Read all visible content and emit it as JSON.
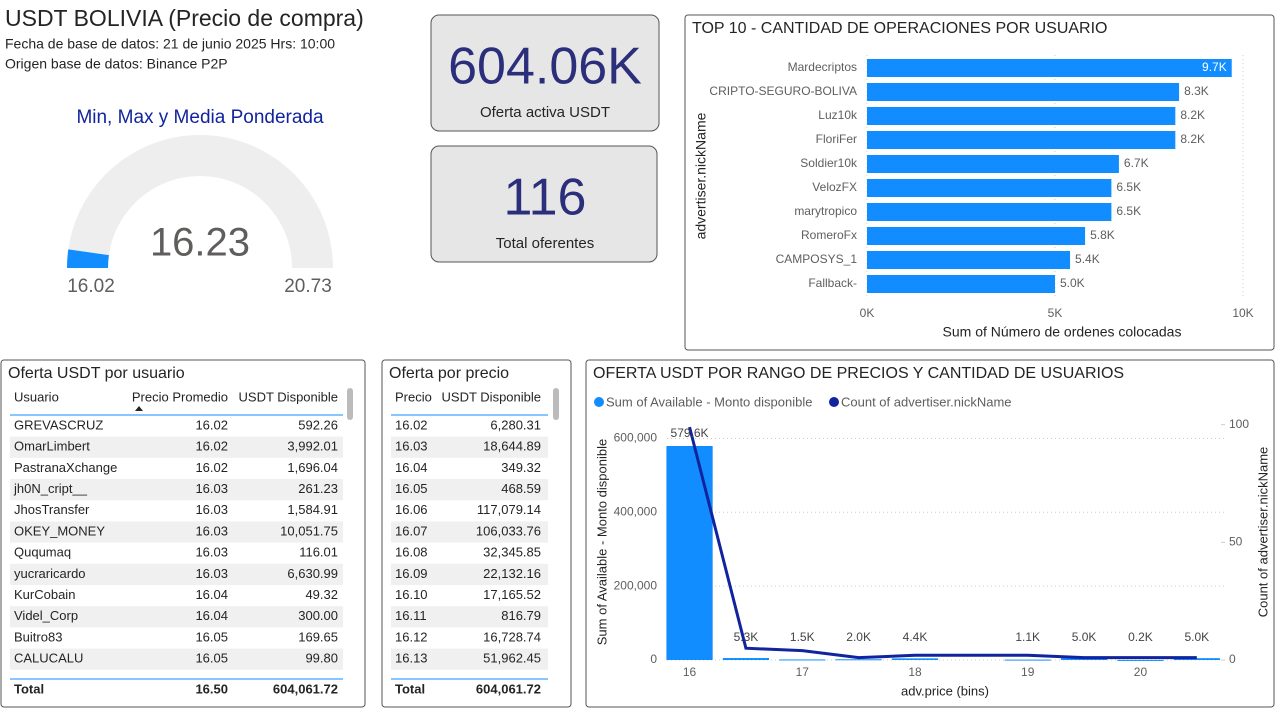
{
  "header": {
    "title": "USDT BOLIVIA (Precio de compra)",
    "lines": [
      "Fecha de base de datos: 21 de junio 2025  Hrs: 10:00",
      "Origen base de datos: Binance P2P"
    ]
  },
  "cards": [
    {
      "value": "604.06K",
      "label": "Oferta activa USDT"
    },
    {
      "value": "116",
      "label": "Total oferentes"
    }
  ],
  "chart_data": [
    {
      "type": "gauge",
      "title": "Min, Max y Media Ponderada",
      "value": 16.23,
      "ylim": [
        16.02,
        20.73
      ],
      "color": "#118DFF"
    },
    {
      "type": "hbar",
      "title": "TOP 10 - CANTIDAD DE OPERACIONES POR USUARIO",
      "categories": [
        "Mardecriptos",
        "CRIPTO-SEGURO-BOLIVA",
        "Luz10k",
        "FloriFer",
        "Soldier10k",
        "VelozFX",
        "marytropico",
        "RomeroFx",
        "CAMPOSYS_1",
        "Fallback-"
      ],
      "values": [
        9700,
        8300,
        8200,
        8200,
        6700,
        6500,
        6500,
        5800,
        5400,
        5000
      ],
      "value_labels": [
        "9.7K",
        "8.3K",
        "8.2K",
        "8.2K",
        "6.7K",
        "6.5K",
        "6.5K",
        "5.8K",
        "5.4K",
        "5.0K"
      ],
      "color": "#118DFF",
      "xlim": [
        0,
        10000
      ],
      "xticks": [
        {
          "value": 0,
          "label": "0K"
        },
        {
          "value": 5000,
          "label": "5K"
        },
        {
          "value": 10000,
          "label": "10K"
        }
      ],
      "x_label": "Sum of Número de ordenes colocadas",
      "y_label": "advertiser.nickName",
      "grid": true
    },
    {
      "type": "combo",
      "title": "OFERTA USDT POR RANGO DE PRECIOS Y CANTIDAD DE USUARIOS",
      "x": [
        16,
        16.5,
        17,
        17.5,
        18,
        19,
        19.5,
        20,
        20.5
      ],
      "series": [
        {
          "name": "Sum of Available - Monto disponible",
          "type": "bar",
          "color": "#118DFF",
          "values": [
            579600,
            5300,
            1500,
            2000,
            4400,
            1100,
            5000,
            200,
            5000
          ],
          "value_labels": [
            "579.6K",
            "5.3K",
            "1.5K",
            "2.0K",
            "4.4K",
            "1.1K",
            "5.0K",
            "0.2K",
            "5.0K"
          ]
        },
        {
          "name": "Count of advertiser.nickName",
          "type": "line",
          "color": "#12239E",
          "axis": "y2",
          "values": [
            99,
            5,
            4,
            1,
            2,
            2,
            1,
            1,
            1
          ]
        }
      ],
      "xlim": [
        15.8,
        20.75
      ],
      "xticks": [
        16,
        17,
        18,
        19,
        20
      ],
      "ylim": [
        0,
        650000
      ],
      "yticks": [
        0,
        {
          "value": 200000,
          "label": "200,000"
        },
        {
          "value": 400000,
          "label": "400,000"
        },
        {
          "value": 600000,
          "label": "600,000"
        }
      ],
      "y2lim": [
        0,
        102
      ],
      "y2ticks": [
        0,
        50,
        100
      ],
      "x_label": "adv.price (bins)",
      "y_label": "Sum of Available - Monto disponible",
      "y2_label": "Count of advertiser.nickName",
      "grid": true
    }
  ],
  "tables": [
    {
      "title": "Oferta USDT por usuario",
      "columns": [
        "Usuario",
        "Precio Promedio",
        "USDT Disponible"
      ],
      "rows": [
        [
          "GREVASCRUZ",
          "16.02",
          "592.26"
        ],
        [
          "OmarLimbert",
          "16.02",
          "3,992.01"
        ],
        [
          "PastranaXchange",
          "16.02",
          "1,696.04"
        ],
        [
          "jh0N_cript__",
          "16.03",
          "261.23"
        ],
        [
          "JhosTransfer",
          "16.03",
          "1,584.91"
        ],
        [
          "OKEY_MONEY",
          "16.03",
          "10,051.75"
        ],
        [
          "Ququmaq",
          "16.03",
          "116.01"
        ],
        [
          "yucraricardo",
          "16.03",
          "6,630.99"
        ],
        [
          "KurCobain",
          "16.04",
          "49.32"
        ],
        [
          "Videl_Corp",
          "16.04",
          "300.00"
        ],
        [
          "Buitro83",
          "16.05",
          "169.65"
        ],
        [
          "CALUCALU",
          "16.05",
          "99.80"
        ]
      ],
      "total": [
        "Total",
        "16.50",
        "604,061.72"
      ]
    },
    {
      "title": "Oferta por precio",
      "columns": [
        "Precio",
        "USDT Disponible"
      ],
      "rows": [
        [
          "16.02",
          "6,280.31"
        ],
        [
          "16.03",
          "18,644.89"
        ],
        [
          "16.04",
          "349.32"
        ],
        [
          "16.05",
          "468.59"
        ],
        [
          "16.06",
          "117,079.14"
        ],
        [
          "16.07",
          "106,033.76"
        ],
        [
          "16.08",
          "32,345.85"
        ],
        [
          "16.09",
          "22,132.16"
        ],
        [
          "16.10",
          "17,165.52"
        ],
        [
          "16.11",
          "816.79"
        ],
        [
          "16.12",
          "16,728.74"
        ],
        [
          "16.13",
          "51,962.45"
        ]
      ],
      "total": [
        "Total",
        "604,061.72"
      ]
    }
  ]
}
